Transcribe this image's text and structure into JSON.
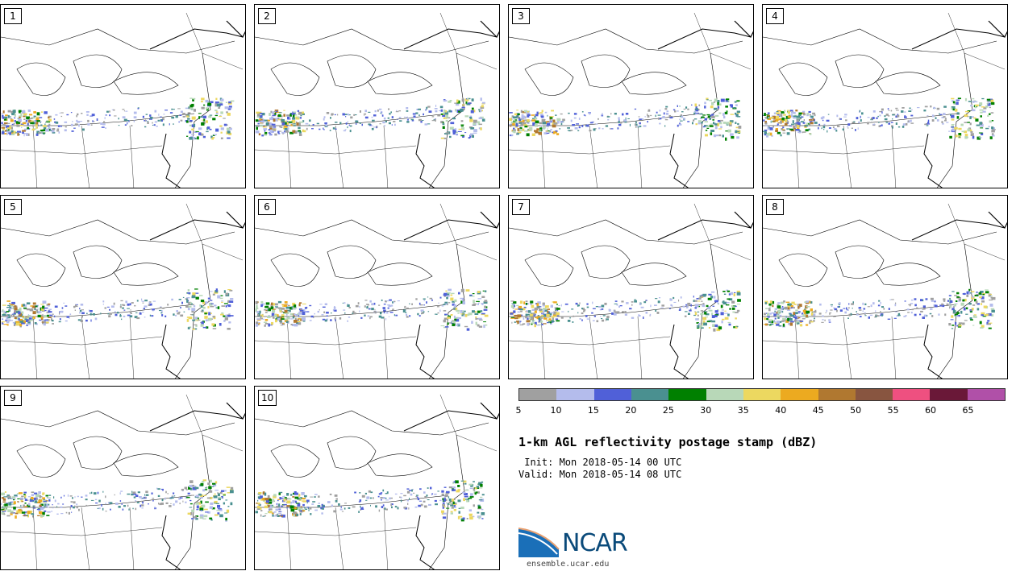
{
  "panels": [
    {
      "label": "1"
    },
    {
      "label": "2"
    },
    {
      "label": "3"
    },
    {
      "label": "4"
    },
    {
      "label": "5"
    },
    {
      "label": "6"
    },
    {
      "label": "7"
    },
    {
      "label": "8"
    },
    {
      "label": "9"
    },
    {
      "label": "10"
    }
  ],
  "colorbar": {
    "ticks": [
      "5",
      "10",
      "15",
      "20",
      "25",
      "30",
      "35",
      "40",
      "45",
      "50",
      "55",
      "60",
      "65"
    ],
    "colors": [
      "#a0a0a0",
      "#b4bcec",
      "#5060d8",
      "#4a9090",
      "#008000",
      "#b8d8b8",
      "#ecd860",
      "#ecaa20",
      "#b07830",
      "#885540",
      "#ee5080",
      "#6a1838",
      "#b050a8"
    ]
  },
  "title": "1-km AGL reflectivity postage stamp (dBZ)",
  "init": " Init: Mon 2018-05-14 00 UTC",
  "valid": "Valid: Mon 2018-05-14 08 UTC",
  "logo": {
    "text": "NCAR",
    "url": "ensemble.ucar.edu",
    "icon": "ncar-logo-icon"
  }
}
